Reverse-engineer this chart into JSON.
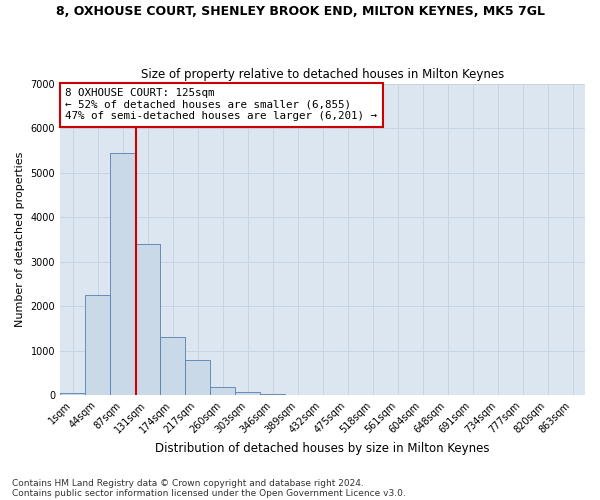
{
  "title": "8, OXHOUSE COURT, SHENLEY BROOK END, MILTON KEYNES, MK5 7GL",
  "subtitle": "Size of property relative to detached houses in Milton Keynes",
  "xlabel": "Distribution of detached houses by size in Milton Keynes",
  "ylabel": "Number of detached properties",
  "footnote1": "Contains HM Land Registry data © Crown copyright and database right 2024.",
  "footnote2": "Contains public sector information licensed under the Open Government Licence v3.0.",
  "bar_labels": [
    "1sqm",
    "44sqm",
    "87sqm",
    "131sqm",
    "174sqm",
    "217sqm",
    "260sqm",
    "303sqm",
    "346sqm",
    "389sqm",
    "432sqm",
    "475sqm",
    "518sqm",
    "561sqm",
    "604sqm",
    "648sqm",
    "691sqm",
    "734sqm",
    "777sqm",
    "820sqm",
    "863sqm"
  ],
  "bar_values": [
    50,
    2250,
    5450,
    3400,
    1300,
    800,
    175,
    75,
    25,
    0,
    0,
    0,
    0,
    0,
    0,
    0,
    0,
    0,
    0,
    0,
    0
  ],
  "bar_color": "#c9d9e8",
  "bar_edge_color": "#5580b0",
  "vline_x": 2.52,
  "vline_color": "#cc0000",
  "ylim": [
    0,
    7000
  ],
  "yticks": [
    0,
    1000,
    2000,
    3000,
    4000,
    5000,
    6000,
    7000
  ],
  "annotation_text": "8 OXHOUSE COURT: 125sqm\n← 52% of detached houses are smaller (6,855)\n47% of semi-detached houses are larger (6,201) →",
  "annotation_box_color": "#ffffff",
  "annotation_box_edge": "#cc0000",
  "grid_color": "#c8d4e4",
  "background_color": "#dce6f0",
  "title_fontsize": 9,
  "subtitle_fontsize": 8.5,
  "ylabel_fontsize": 8,
  "xlabel_fontsize": 8.5,
  "tick_fontsize": 7,
  "footnote_fontsize": 6.5,
  "annotation_fontsize": 7.8
}
